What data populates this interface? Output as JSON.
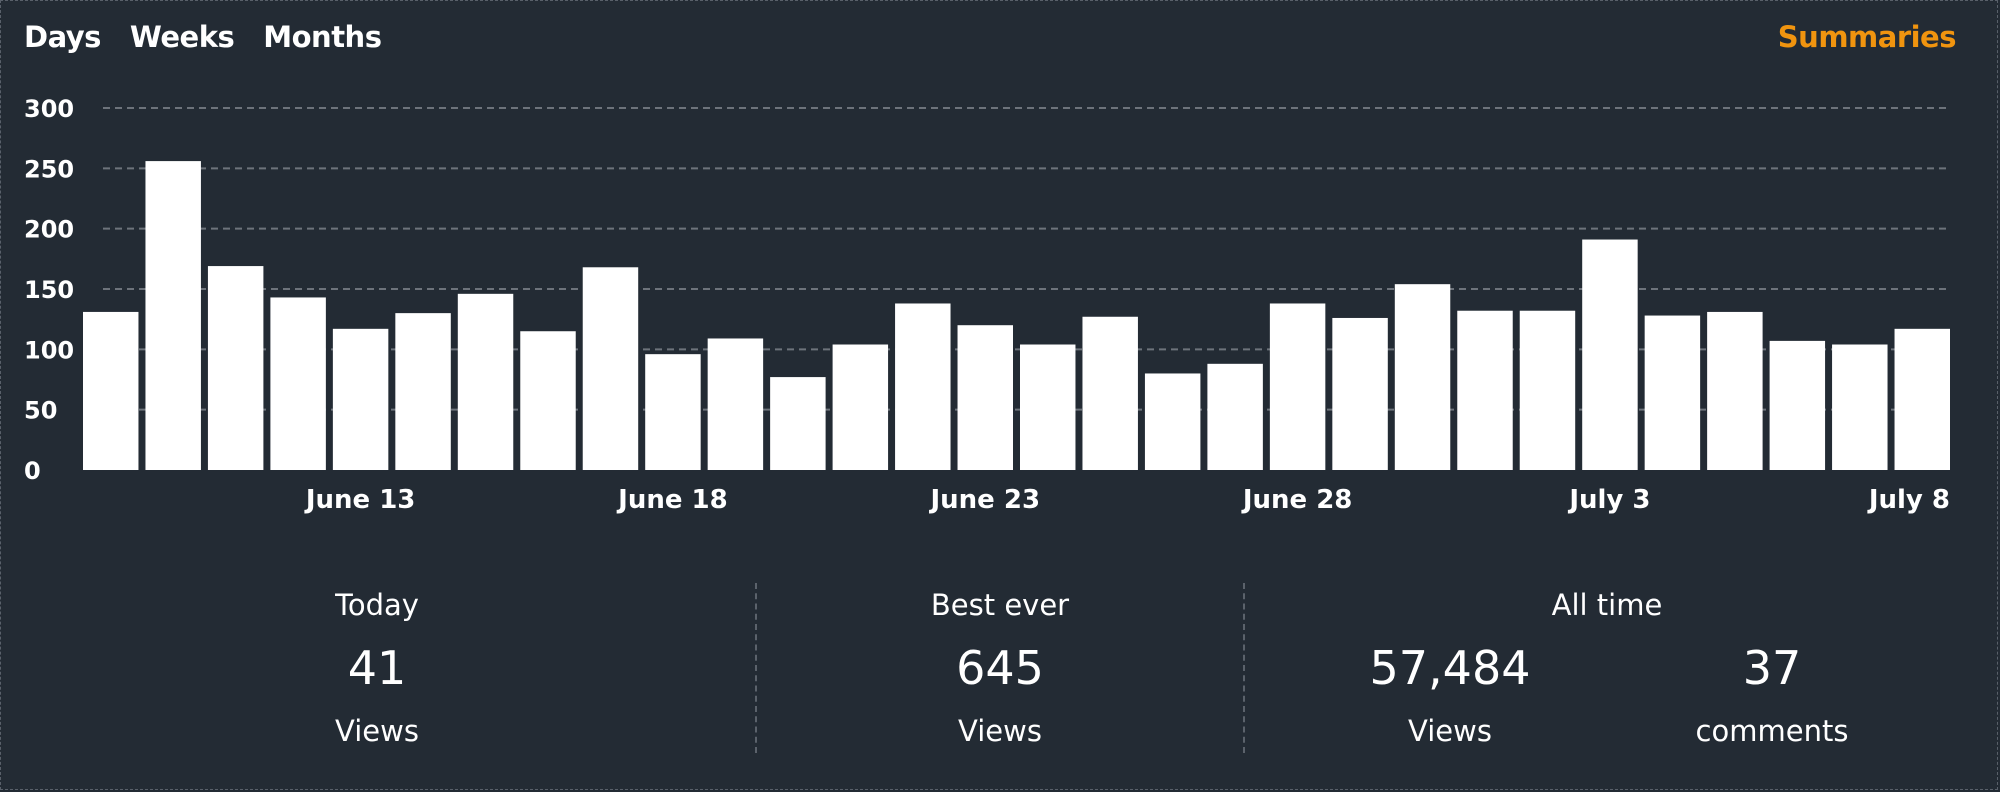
{
  "nav": {
    "tabs": [
      {
        "label": "Days"
      },
      {
        "label": "Weeks"
      },
      {
        "label": "Months"
      }
    ],
    "summaries_label": "Summaries",
    "summaries_color": "#f0940f"
  },
  "chart_data": {
    "type": "bar",
    "title": "",
    "xlabel": "",
    "ylabel": "",
    "ylim": [
      0,
      300
    ],
    "yticks": [
      0,
      50,
      100,
      150,
      200,
      250,
      300
    ],
    "grid": true,
    "bar_color": "#ffffff",
    "categories": [
      "June 9",
      "June 10",
      "June 11",
      "June 12",
      "June 13",
      "June 14",
      "June 15",
      "June 16",
      "June 17",
      "June 18",
      "June 19",
      "June 20",
      "June 21",
      "June 22",
      "June 23",
      "June 24",
      "June 25",
      "June 26",
      "June 27",
      "June 28",
      "June 29",
      "June 30",
      "July 1",
      "July 2",
      "July 3",
      "July 4",
      "July 5",
      "July 6",
      "July 7",
      "July 8"
    ],
    "values": [
      131,
      256,
      169,
      143,
      117,
      130,
      146,
      115,
      168,
      96,
      109,
      77,
      104,
      138,
      120,
      104,
      127,
      80,
      88,
      138,
      126,
      154,
      132,
      132,
      191,
      128,
      131,
      107,
      104,
      117
    ],
    "xtick_labels": [
      "June 13",
      "June 18",
      "June 23",
      "June 28",
      "July 3",
      "July 8"
    ]
  },
  "stats": {
    "today": {
      "label": "Today",
      "value": "41",
      "unit": "Views"
    },
    "best": {
      "label": "Best ever",
      "value": "645",
      "unit": "Views"
    },
    "all_time": {
      "label": "All time",
      "views_value": "57,484",
      "views_unit": "Views",
      "comments_value": "37",
      "comments_unit": "comments"
    }
  }
}
